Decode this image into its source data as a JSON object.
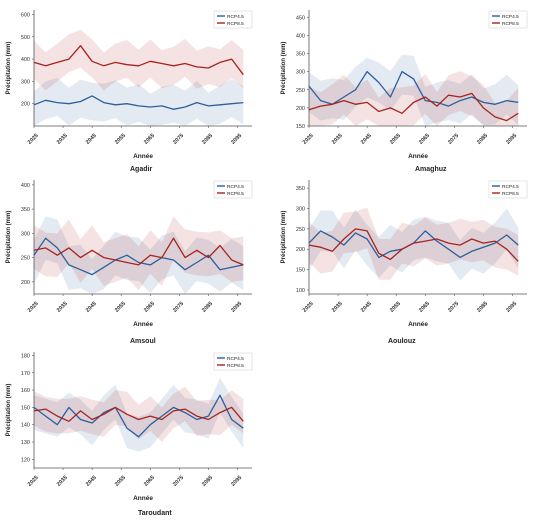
{
  "chart_data": [
    {
      "type": "line",
      "title": "Agadir",
      "xlabel": "Année",
      "ylabel": "Précipitation (mm)",
      "xlim": [
        2025,
        2100
      ],
      "ylim": [
        100,
        620
      ],
      "xticks": [
        "2025",
        "2035",
        "2045",
        "2055",
        "2065",
        "2075",
        "2085",
        "2095"
      ],
      "yticks": [
        200,
        300,
        400,
        500,
        600
      ],
      "legend": "top-right",
      "band_spread": 85,
      "x": [
        2025,
        2029,
        2033,
        2037,
        2041,
        2045,
        2049,
        2053,
        2057,
        2061,
        2065,
        2069,
        2073,
        2077,
        2081,
        2085,
        2089,
        2093,
        2097
      ],
      "series": [
        {
          "name": "RCP4.5",
          "color": "#2c5f9e",
          "values": [
            195,
            215,
            205,
            200,
            210,
            235,
            205,
            195,
            200,
            190,
            185,
            190,
            175,
            185,
            205,
            190,
            195,
            200,
            205
          ]
        },
        {
          "name": "RCP8.5",
          "color": "#a8231f",
          "values": [
            385,
            370,
            385,
            400,
            460,
            390,
            370,
            385,
            375,
            370,
            390,
            380,
            370,
            380,
            365,
            360,
            385,
            400,
            330
          ]
        }
      ]
    },
    {
      "type": "line",
      "title": "Amaghuz",
      "xlabel": "Année",
      "ylabel": "Précipitation (mm)",
      "xlim": [
        2025,
        2100
      ],
      "ylim": [
        150,
        470
      ],
      "xticks": [
        "2025",
        "2035",
        "2045",
        "2055",
        "2065",
        "2075",
        "2085",
        "2095"
      ],
      "yticks": [
        150,
        200,
        250,
        300,
        350,
        400,
        450
      ],
      "legend": "top-right",
      "band_spread": 55,
      "x": [
        2025,
        2029,
        2033,
        2037,
        2041,
        2045,
        2049,
        2053,
        2057,
        2061,
        2065,
        2069,
        2073,
        2077,
        2081,
        2085,
        2089,
        2093,
        2097
      ],
      "series": [
        {
          "name": "RCP4.5",
          "color": "#2c5f9e",
          "values": [
            260,
            220,
            210,
            230,
            250,
            300,
            270,
            230,
            300,
            280,
            220,
            215,
            205,
            220,
            230,
            215,
            210,
            220,
            215
          ]
        },
        {
          "name": "RCP8.5",
          "color": "#a8231f",
          "values": [
            195,
            205,
            210,
            220,
            210,
            215,
            190,
            200,
            185,
            215,
            230,
            205,
            235,
            230,
            240,
            200,
            175,
            165,
            185
          ]
        }
      ]
    },
    {
      "type": "line",
      "title": "Amsoul",
      "xlabel": "Année",
      "ylabel": "Précipitation (mm)",
      "xlim": [
        2025,
        2100
      ],
      "ylim": [
        175,
        410
      ],
      "xticks": [
        "2025",
        "2035",
        "2045",
        "2055",
        "2065",
        "2075",
        "2085",
        "2095"
      ],
      "yticks": [
        200,
        250,
        300,
        350,
        400
      ],
      "legend": "top-right",
      "band_spread": 45,
      "x": [
        2025,
        2029,
        2033,
        2037,
        2041,
        2045,
        2049,
        2053,
        2057,
        2061,
        2065,
        2069,
        2073,
        2077,
        2081,
        2085,
        2089,
        2093,
        2097
      ],
      "series": [
        {
          "name": "RCP4.5",
          "color": "#2c5f9e",
          "values": [
            255,
            290,
            270,
            235,
            225,
            215,
            230,
            245,
            255,
            240,
            235,
            250,
            245,
            225,
            240,
            255,
            225,
            230,
            235
          ]
        },
        {
          "name": "RCP8.5",
          "color": "#a8231f",
          "values": [
            265,
            270,
            255,
            270,
            250,
            265,
            250,
            245,
            240,
            235,
            255,
            250,
            290,
            250,
            265,
            250,
            275,
            245,
            235
          ]
        }
      ]
    },
    {
      "type": "line",
      "title": "Aoulouz",
      "xlabel": "Année",
      "ylabel": "Précipitation (mm)",
      "xlim": [
        2025,
        2100
      ],
      "ylim": [
        90,
        370
      ],
      "xticks": [
        "2025",
        "2035",
        "2045",
        "2055",
        "2065",
        "2075",
        "2085",
        "2095"
      ],
      "yticks": [
        100,
        150,
        200,
        250,
        300,
        350
      ],
      "legend": "top-right",
      "band_spread": 50,
      "x": [
        2025,
        2029,
        2033,
        2037,
        2041,
        2045,
        2049,
        2053,
        2057,
        2061,
        2065,
        2069,
        2073,
        2077,
        2081,
        2085,
        2089,
        2093,
        2097
      ],
      "series": [
        {
          "name": "RCP4.5",
          "color": "#2c5f9e",
          "values": [
            215,
            245,
            230,
            210,
            240,
            225,
            180,
            195,
            200,
            215,
            245,
            220,
            200,
            180,
            195,
            205,
            215,
            235,
            210
          ]
        },
        {
          "name": "RCP8.5",
          "color": "#a8231f",
          "values": [
            210,
            205,
            195,
            225,
            250,
            245,
            190,
            175,
            200,
            215,
            220,
            225,
            215,
            210,
            225,
            215,
            220,
            200,
            170
          ]
        }
      ]
    },
    {
      "type": "line",
      "title": "Taroudant",
      "xlabel": "Année",
      "ylabel": "Précipitation (mm)",
      "xlim": [
        2025,
        2100
      ],
      "ylim": [
        115,
        182
      ],
      "xticks": [
        "2025",
        "2035",
        "2045",
        "2055",
        "2065",
        "2075",
        "2085",
        "2095"
      ],
      "yticks": [
        120,
        130,
        140,
        150,
        160,
        170,
        180
      ],
      "legend": "top-right",
      "band_spread": 10,
      "x": [
        2025,
        2029,
        2033,
        2037,
        2041,
        2045,
        2049,
        2053,
        2057,
        2061,
        2065,
        2069,
        2073,
        2077,
        2081,
        2085,
        2089,
        2093,
        2097
      ],
      "series": [
        {
          "name": "RCP4.5",
          "color": "#2c5f9e",
          "values": [
            150,
            145,
            140,
            150,
            143,
            141,
            147,
            150,
            138,
            133,
            140,
            145,
            150,
            147,
            143,
            145,
            157,
            143,
            138
          ]
        },
        {
          "name": "RCP8.5",
          "color": "#a8231f",
          "values": [
            148,
            149,
            145,
            142,
            148,
            143,
            146,
            150,
            146,
            143,
            145,
            143,
            148,
            149,
            145,
            143,
            147,
            150,
            142
          ]
        }
      ]
    }
  ]
}
